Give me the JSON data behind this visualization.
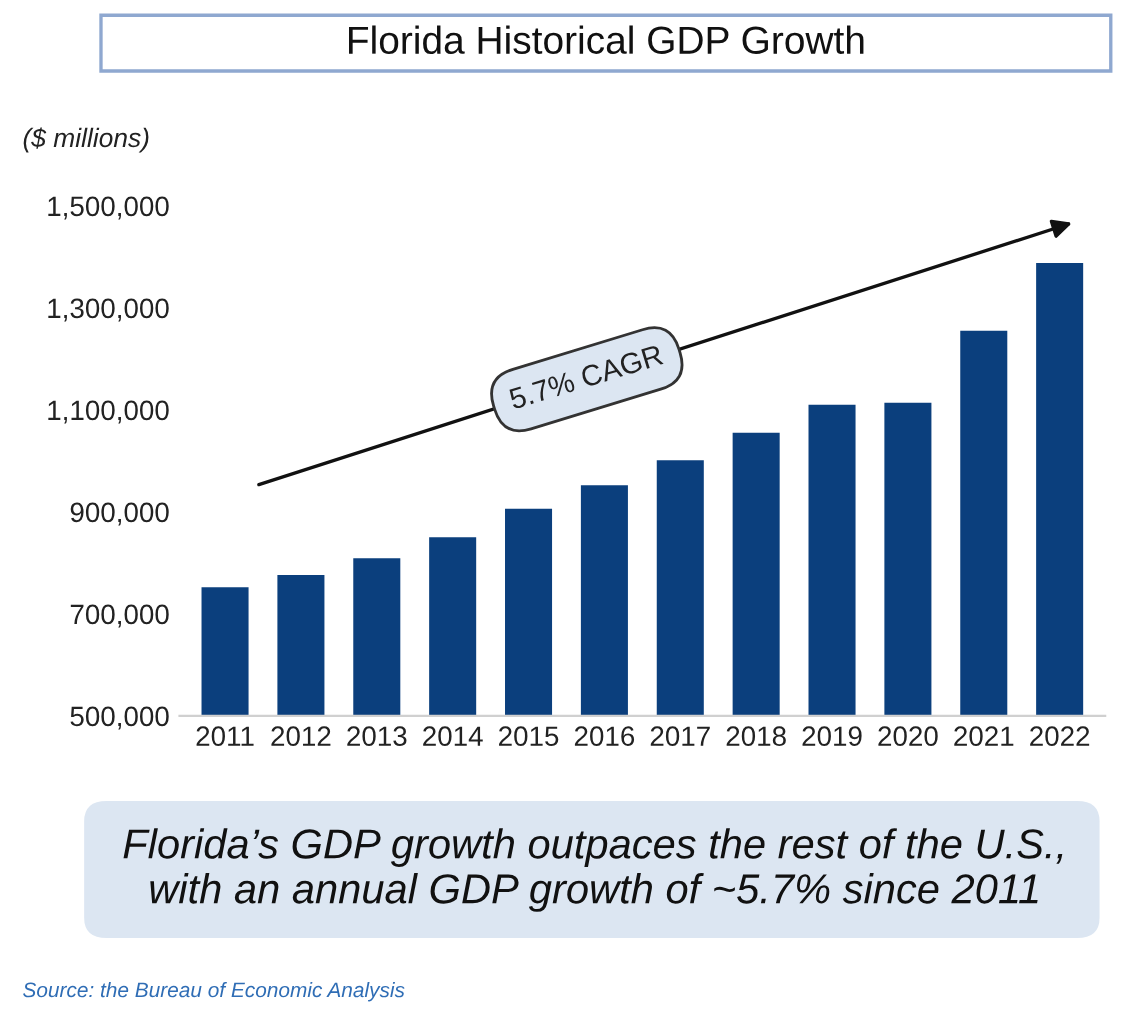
{
  "chart_data": {
    "type": "bar",
    "title": "Florida Historical GDP Growth",
    "ylabel": "($ millions)",
    "categories": [
      "2011",
      "2012",
      "2013",
      "2014",
      "2015",
      "2016",
      "2017",
      "2018",
      "2019",
      "2020",
      "2021",
      "2022"
    ],
    "values": [
      752000,
      776000,
      809000,
      850000,
      906000,
      952000,
      1001000,
      1055000,
      1110000,
      1114000,
      1255000,
      1388000
    ],
    "color": "#0b3f7d",
    "ylim": [
      500000,
      1500000
    ],
    "yticks": [
      {
        "value": 500000,
        "label": "500,000"
      },
      {
        "value": 700000,
        "label": "700,000"
      },
      {
        "value": 900000,
        "label": "900,000"
      },
      {
        "value": 1100000,
        "label": "1,100,000"
      },
      {
        "value": 1300000,
        "label": "1,300,000"
      },
      {
        "value": 1500000,
        "label": "1,500,000"
      }
    ],
    "grid": false,
    "legend": false,
    "annotations": [
      "5.7% CAGR",
      "Florida’s GDP growth outpaces the rest of the U.S., with an annual GDP growth of ~5.7% since 2011",
      "Source: the Bureau of Economic Analysis"
    ]
  }
}
